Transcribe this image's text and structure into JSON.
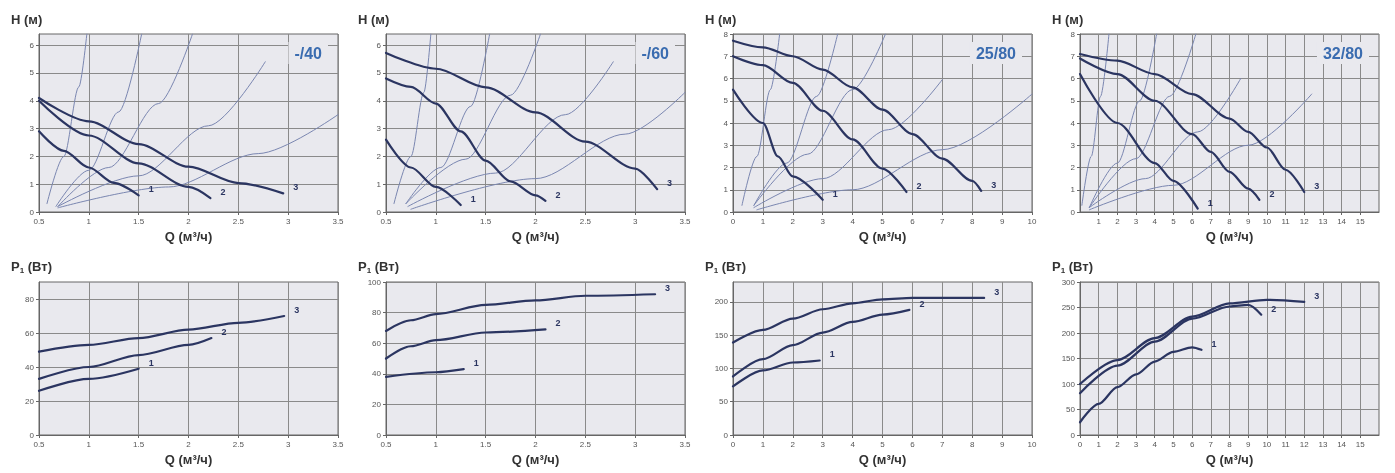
{
  "chart_data": [
    {
      "type": "line",
      "xlabel": "Q (м³/ч)",
      "ylabel": "H (м)",
      "annotations": [
        "-/40"
      ],
      "xlim": [
        0.5,
        3.5
      ],
      "xticks": [
        0.5,
        1,
        1.5,
        2,
        2.5,
        3,
        3.5
      ],
      "ylim": [
        0,
        6.4
      ],
      "yticks": [
        0,
        1,
        2,
        3,
        4,
        5,
        6
      ],
      "grid": true,
      "series": [
        {
          "color": "#7a86b0",
          "x": [
            0.58,
            0.75,
            0.9,
            0.98
          ],
          "values": [
            0.3,
            2.0,
            4.5,
            6.4
          ]
        },
        {
          "color": "#7a86b0",
          "x": [
            0.67,
            1.0,
            1.3,
            1.53
          ],
          "values": [
            0.2,
            1.5,
            3.6,
            6.4
          ]
        },
        {
          "color": "#7a86b0",
          "x": [
            0.69,
            1.2,
            1.7,
            2.04
          ],
          "values": [
            0.2,
            1.6,
            3.9,
            6.4
          ]
        },
        {
          "color": "#7a86b0",
          "x": [
            0.69,
            1.5,
            2.2,
            2.77
          ],
          "values": [
            0.2,
            1.3,
            3.1,
            5.4
          ]
        },
        {
          "color": "#7a86b0",
          "x": [
            0.69,
            1.8,
            2.7,
            3.5
          ],
          "values": [
            0.15,
            0.9,
            2.1,
            3.5
          ]
        },
        {
          "name": "1",
          "color": "#2b3561",
          "x": [
            0.5,
            0.75,
            1,
            1.25,
            1.5
          ],
          "values": [
            2.9,
            2.2,
            1.6,
            1.05,
            0.6
          ]
        },
        {
          "name": "2",
          "color": "#2b3561",
          "x": [
            0.5,
            1,
            1.5,
            2,
            2.22
          ],
          "values": [
            4.0,
            2.75,
            1.75,
            0.9,
            0.5
          ]
        },
        {
          "name": "3",
          "color": "#2b3561",
          "x": [
            0.5,
            1,
            1.5,
            2,
            2.5,
            2.95
          ],
          "values": [
            4.1,
            3.26,
            2.44,
            1.63,
            1.04,
            0.67
          ]
        }
      ]
    },
    {
      "type": "line",
      "xlabel": "Q (м³/ч)",
      "ylabel": "H (м)",
      "annotations": [
        "-/60"
      ],
      "xlim": [
        0.5,
        3.5
      ],
      "xticks": [
        0.5,
        1,
        1.5,
        2,
        2.5,
        3,
        3.5
      ],
      "ylim": [
        0,
        6.4
      ],
      "yticks": [
        0,
        1,
        2,
        3,
        4,
        5,
        6
      ],
      "grid": true,
      "series": [
        {
          "color": "#7a86b0",
          "x": [
            0.58,
            0.75,
            0.88,
            0.95
          ],
          "values": [
            0.3,
            2.0,
            4.3,
            6.4
          ]
        },
        {
          "color": "#7a86b0",
          "x": [
            0.7,
            1.05,
            1.35,
            1.54
          ],
          "values": [
            0.3,
            1.6,
            3.8,
            6.4
          ]
        },
        {
          "color": "#7a86b0",
          "x": [
            0.7,
            1.3,
            1.75,
            2.05
          ],
          "values": [
            0.3,
            1.9,
            4.2,
            6.4
          ]
        },
        {
          "color": "#7a86b0",
          "x": [
            0.72,
            1.6,
            2.3,
            2.78
          ],
          "values": [
            0.2,
            1.4,
            3.5,
            5.4
          ]
        },
        {
          "color": "#7a86b0",
          "x": [
            0.75,
            2.0,
            2.9,
            3.5
          ],
          "values": [
            0.1,
            1.2,
            2.8,
            4.3
          ]
        },
        {
          "name": "1",
          "color": "#2b3561",
          "x": [
            0.5,
            0.75,
            1,
            1.25
          ],
          "values": [
            2.6,
            1.6,
            0.9,
            0.25
          ]
        },
        {
          "name": "2",
          "color": "#2b3561",
          "x": [
            0.5,
            0.75,
            1,
            1.25,
            1.5,
            1.75,
            2,
            2.1
          ],
          "values": [
            4.8,
            4.5,
            3.9,
            2.9,
            1.85,
            1.1,
            0.6,
            0.4
          ]
        },
        {
          "name": "3",
          "color": "#2b3561",
          "x": [
            0.5,
            1,
            1.5,
            2,
            2.5,
            3,
            3.22
          ],
          "values": [
            5.72,
            5.15,
            4.48,
            3.58,
            2.53,
            1.56,
            0.82
          ]
        }
      ]
    },
    {
      "type": "line",
      "xlabel": "Q (м³/ч)",
      "ylabel": "H (м)",
      "annotations": [
        "25/80"
      ],
      "xlim": [
        0,
        10
      ],
      "xticks": [
        0,
        1,
        2,
        3,
        4,
        5,
        6,
        7,
        8,
        9,
        10
      ],
      "ylim": [
        0,
        8
      ],
      "yticks": [
        0,
        1,
        2,
        3,
        4,
        5,
        6,
        7,
        8
      ],
      "grid": true,
      "series": [
        {
          "color": "#7a86b0",
          "x": [
            0.3,
            0.8,
            1.25,
            1.56
          ],
          "values": [
            0.3,
            2.5,
            5.5,
            8
          ]
        },
        {
          "color": "#7a86b0",
          "x": [
            0.7,
            1.8,
            2.8,
            3.5
          ],
          "values": [
            0.3,
            2.2,
            5.2,
            8
          ]
        },
        {
          "color": "#7a86b0",
          "x": [
            0.7,
            2.5,
            4.0,
            5.1
          ],
          "values": [
            0.3,
            2.6,
            5.5,
            8
          ]
        },
        {
          "color": "#7a86b0",
          "x": [
            0.7,
            3.0,
            5.2,
            7.0
          ],
          "values": [
            0.2,
            1.5,
            3.7,
            5.95
          ]
        },
        {
          "color": "#7a86b0",
          "x": [
            0.8,
            4.0,
            7.0,
            10
          ],
          "values": [
            0.1,
            1.0,
            2.8,
            5.3
          ]
        },
        {
          "name": "1",
          "color": "#2b3561",
          "x": [
            0,
            1,
            1.5,
            2,
            3
          ],
          "values": [
            5.5,
            4.0,
            2.5,
            1.6,
            0.55
          ]
        },
        {
          "name": "2",
          "color": "#2b3561",
          "x": [
            0,
            1,
            2,
            3,
            4,
            5,
            5.8
          ],
          "values": [
            7.0,
            6.6,
            5.8,
            4.55,
            3.26,
            1.95,
            0.9
          ]
        },
        {
          "name": "3",
          "color": "#2b3561",
          "x": [
            0,
            1,
            2,
            3,
            4,
            5,
            6,
            7,
            8,
            8.3
          ],
          "values": [
            7.7,
            7.4,
            7.0,
            6.4,
            5.6,
            4.6,
            3.5,
            2.4,
            1.4,
            0.95
          ]
        }
      ]
    },
    {
      "type": "line",
      "xlabel": "Q (м³/ч)",
      "ylabel": "H (м)",
      "annotations": [
        "32/80"
      ],
      "xlim": [
        0,
        16
      ],
      "xticks": [
        1,
        2,
        3,
        4,
        5,
        6,
        7,
        8,
        9,
        10,
        11,
        12,
        13,
        14,
        15
      ],
      "ylim": [
        0,
        8
      ],
      "yticks": [
        0,
        1,
        2,
        3,
        4,
        5,
        6,
        7,
        8
      ],
      "grid": true,
      "series": [
        {
          "color": "#7a86b0",
          "x": [
            0.1,
            0.6,
            1.1,
            1.55
          ],
          "values": [
            0.3,
            2.5,
            5.2,
            8
          ]
        },
        {
          "color": "#7a86b0",
          "x": [
            0.5,
            2.0,
            3.2,
            4.1
          ],
          "values": [
            0.2,
            2.2,
            5.0,
            8
          ]
        },
        {
          "color": "#7a86b0",
          "x": [
            0.5,
            3.0,
            4.8,
            6.2
          ],
          "values": [
            0.2,
            2.4,
            5.2,
            8
          ]
        },
        {
          "color": "#7a86b0",
          "x": [
            0.5,
            3.5,
            6.3,
            8.6
          ],
          "values": [
            0.2,
            1.5,
            3.6,
            6.0
          ]
        },
        {
          "color": "#7a86b0",
          "x": [
            0.5,
            5.0,
            9.0,
            12.4
          ],
          "values": [
            0.1,
            1.2,
            3.0,
            5.3
          ]
        },
        {
          "name": "1",
          "color": "#2b3561",
          "x": [
            0,
            2,
            4,
            5,
            6.3
          ],
          "values": [
            6.2,
            4.0,
            2.2,
            1.4,
            0.15
          ]
        },
        {
          "name": "2",
          "color": "#2b3561",
          "x": [
            0,
            2,
            4,
            6,
            7,
            8,
            9,
            9.6
          ],
          "values": [
            6.9,
            6.2,
            5.0,
            3.5,
            2.7,
            1.8,
            1.05,
            0.55
          ]
        },
        {
          "name": "3",
          "color": "#2b3561",
          "x": [
            0,
            2,
            4,
            6,
            8,
            9,
            10,
            11,
            12
          ],
          "values": [
            7.1,
            6.8,
            6.2,
            5.3,
            4.2,
            3.6,
            2.9,
            1.9,
            0.9
          ]
        }
      ]
    },
    {
      "type": "line",
      "xlabel": "Q (м³/ч)",
      "ylabel": "P$_{1}$ (Вт)",
      "xlim": [
        0.5,
        3.5
      ],
      "xticks": [
        0.5,
        1,
        1.5,
        2,
        2.5,
        3,
        3.5
      ],
      "ylim": [
        0,
        90
      ],
      "yticks": [
        0,
        20,
        40,
        60,
        80
      ],
      "grid": true,
      "series": [
        {
          "name": "1",
          "color": "#2b3561",
          "x": [
            0.5,
            1,
            1.5
          ],
          "values": [
            26,
            33,
            39
          ]
        },
        {
          "name": "2",
          "color": "#2b3561",
          "x": [
            0.5,
            1,
            1.5,
            2,
            2.23
          ],
          "values": [
            33,
            40,
            47,
            53,
            57
          ]
        },
        {
          "name": "3",
          "color": "#2b3561",
          "x": [
            0.5,
            1,
            1.5,
            2,
            2.5,
            2.96
          ],
          "values": [
            49,
            53,
            57,
            62,
            66,
            70
          ]
        }
      ]
    },
    {
      "type": "line",
      "xlabel": "Q (м³/ч)",
      "ylabel": "P$_{1}$ (Вт)",
      "xlim": [
        0.5,
        3.5
      ],
      "xticks": [
        0.5,
        1,
        1.5,
        2,
        2.5,
        3,
        3.5
      ],
      "ylim": [
        0,
        100
      ],
      "yticks": [
        0,
        20,
        40,
        60,
        80,
        100
      ],
      "grid": true,
      "series": [
        {
          "name": "1",
          "color": "#2b3561",
          "x": [
            0.5,
            1,
            1.28
          ],
          "values": [
            38,
            41,
            43
          ]
        },
        {
          "name": "2",
          "color": "#2b3561",
          "x": [
            0.5,
            0.75,
            1,
            1.5,
            2.1
          ],
          "values": [
            50,
            58,
            62,
            67,
            69
          ]
        },
        {
          "name": "3",
          "color": "#2b3561",
          "x": [
            0.5,
            0.75,
            1,
            1.5,
            2,
            2.5,
            3.2
          ],
          "values": [
            68,
            75,
            79,
            85,
            88,
            91,
            92
          ]
        }
      ]
    },
    {
      "type": "line",
      "xlabel": "Q (м³/ч)",
      "ylabel": "P$_{1}$ (Вт)",
      "xlim": [
        0,
        10
      ],
      "xticks": [
        0,
        1,
        2,
        3,
        4,
        5,
        6,
        7,
        8,
        9,
        10
      ],
      "ylim": [
        0,
        230
      ],
      "yticks": [
        0,
        50,
        100,
        150,
        200
      ],
      "grid": true,
      "series": [
        {
          "name": "1",
          "color": "#2b3561",
          "x": [
            0,
            1,
            2,
            2.9
          ],
          "values": [
            73,
            97,
            109,
            112
          ]
        },
        {
          "name": "2",
          "color": "#2b3561",
          "x": [
            0,
            1,
            2,
            3,
            4,
            5,
            5.9
          ],
          "values": [
            88,
            114,
            135,
            154,
            170,
            181,
            188
          ]
        },
        {
          "name": "3",
          "color": "#2b3561",
          "x": [
            0,
            1,
            2,
            3,
            4,
            5,
            6,
            7,
            8.4
          ],
          "values": [
            139,
            158,
            175,
            189,
            198,
            204,
            206,
            206,
            206
          ]
        }
      ]
    },
    {
      "type": "line",
      "xlabel": "Q (м³/ч)",
      "ylabel": "P$_{1}$ (Вт)",
      "xlim": [
        0,
        16
      ],
      "xticks": [
        0,
        1,
        2,
        3,
        4,
        5,
        6,
        7,
        8,
        9,
        10,
        11,
        12,
        13,
        14,
        15
      ],
      "ylim": [
        0,
        300
      ],
      "yticks": [
        0,
        50,
        100,
        150,
        200,
        250,
        300
      ],
      "grid": true,
      "series": [
        {
          "name": "1",
          "color": "#2b3561",
          "x": [
            0,
            1,
            2,
            3,
            4,
            5,
            6,
            6.5
          ],
          "values": [
            25,
            61,
            94,
            119,
            144,
            163,
            172,
            167
          ]
        },
        {
          "name": "2",
          "color": "#2b3561",
          "x": [
            0,
            2,
            4,
            6,
            8,
            9,
            9.7
          ],
          "values": [
            82,
            136,
            183,
            228,
            252,
            255,
            236
          ]
        },
        {
          "name": "3",
          "color": "#2b3561",
          "x": [
            0,
            2,
            4,
            6,
            8,
            10,
            12
          ],
          "values": [
            100,
            147,
            190,
            232,
            258,
            265,
            261
          ]
        }
      ]
    }
  ]
}
